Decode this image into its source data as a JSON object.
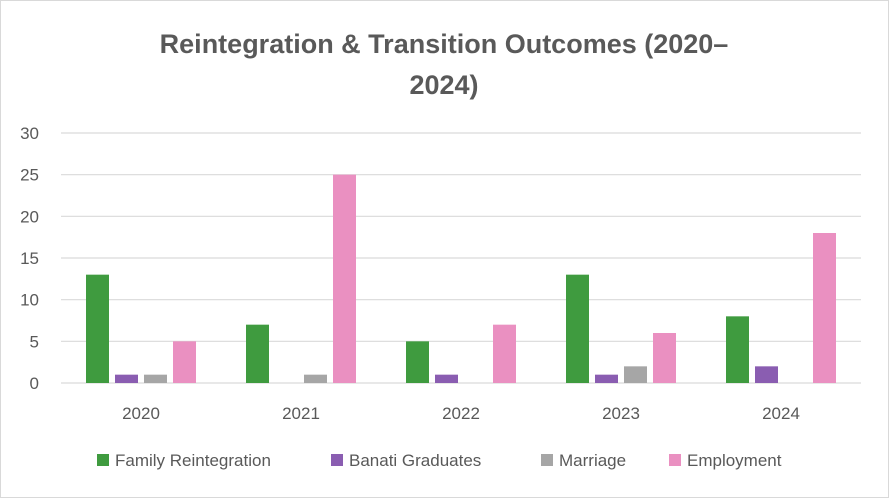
{
  "chart_data": {
    "type": "bar",
    "title_lines": [
      "Reintegration & Transition Outcomes (2020–",
      "2024)"
    ],
    "xlabel": "",
    "ylabel": "",
    "categories": [
      "2020",
      "2021",
      "2022",
      "2023",
      "2024"
    ],
    "ylim": [
      0,
      30
    ],
    "yticks": [
      "0",
      "5",
      "10",
      "15",
      "20",
      "25",
      "30"
    ],
    "grid": true,
    "legend_position": "bottom",
    "series": [
      {
        "name": "Family Reintegration",
        "color": "#3f9b3f",
        "values": [
          13,
          7,
          5,
          13,
          8
        ]
      },
      {
        "name": "Banati Graduates",
        "color": "#8a5db1",
        "values": [
          1,
          0,
          1,
          1,
          2
        ]
      },
      {
        "name": "Marriage",
        "color": "#a6a6a6",
        "values": [
          1,
          1,
          0,
          2,
          0
        ]
      },
      {
        "name": "Employment",
        "color": "#ea90c1",
        "values": [
          5,
          25,
          7,
          6,
          18
        ]
      }
    ]
  }
}
